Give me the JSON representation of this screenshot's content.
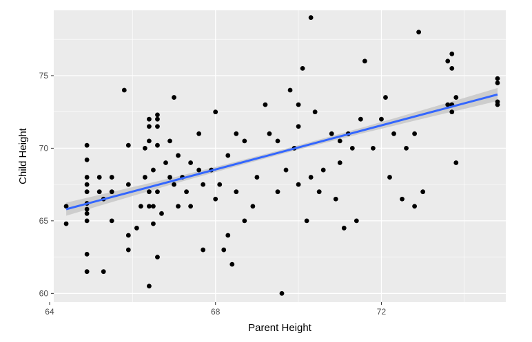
{
  "chart_data": {
    "type": "scatter",
    "xlabel": "Parent Height",
    "ylabel": "Child Height",
    "xlim": [
      64.1,
      75.0
    ],
    "ylim": [
      59.4,
      79.5
    ],
    "x_ticks": [
      64,
      68,
      72
    ],
    "x_tick_labels": [
      "64",
      "68",
      "72"
    ],
    "y_ticks": [
      60,
      65,
      70,
      75
    ],
    "y_tick_labels": [
      "60",
      "65",
      "70",
      "75"
    ],
    "grid": true,
    "colors": {
      "panel_background": "#ebebeb",
      "grid_line": "#ffffff",
      "point": "#000000",
      "trend_line": "#3366ff",
      "confidence_band": "#c8c8c8"
    },
    "trend_line": {
      "method": "linear regression",
      "x": [
        64.4,
        74.8
      ],
      "y": [
        65.8,
        73.7
      ],
      "ci_halfwidth_x": [
        64.4,
        65.5,
        67.0,
        68.5,
        70.0,
        71.5,
        73.0,
        74.0,
        74.8
      ],
      "ci_halfwidth": [
        0.45,
        0.35,
        0.22,
        0.16,
        0.15,
        0.2,
        0.3,
        0.38,
        0.45
      ]
    },
    "points": {
      "x": [
        64.4,
        64.4,
        64.9,
        64.9,
        64.9,
        64.9,
        64.9,
        64.9,
        64.9,
        64.9,
        64.9,
        64.9,
        64.9,
        65.2,
        65.2,
        65.3,
        65.3,
        65.5,
        65.5,
        65.5,
        65.8,
        65.9,
        65.9,
        65.9,
        65.9,
        66.1,
        66.2,
        66.3,
        66.3,
        66.4,
        66.4,
        66.4,
        66.4,
        66.4,
        66.4,
        66.5,
        66.5,
        66.5,
        66.6,
        66.6,
        66.6,
        66.6,
        66.6,
        66.6,
        66.7,
        66.8,
        66.9,
        66.9,
        67.0,
        67.0,
        67.1,
        67.1,
        67.2,
        67.3,
        67.4,
        67.4,
        67.6,
        67.6,
        67.7,
        67.7,
        67.9,
        68.0,
        68.0,
        68.1,
        68.2,
        68.3,
        68.3,
        68.4,
        68.5,
        68.5,
        68.7,
        68.7,
        68.9,
        69.0,
        69.2,
        69.3,
        69.5,
        69.5,
        69.6,
        69.7,
        69.8,
        69.9,
        70.0,
        70.0,
        70.0,
        70.1,
        70.2,
        70.3,
        70.3,
        70.4,
        70.5,
        70.6,
        70.8,
        70.9,
        71.0,
        71.0,
        71.1,
        71.2,
        71.3,
        71.4,
        71.5,
        71.6,
        71.8,
        72.0,
        72.1,
        72.2,
        72.3,
        72.5,
        72.6,
        72.8,
        72.8,
        72.9,
        73.0,
        73.6,
        73.6,
        73.7,
        73.7,
        73.7,
        73.7,
        73.8,
        73.8,
        74.8,
        74.8,
        74.8,
        74.8
      ],
      "y": [
        64.8,
        66.0,
        61.5,
        62.7,
        65.5,
        65.8,
        66.2,
        67.0,
        68.0,
        69.2,
        70.2,
        67.5,
        65.0,
        67.0,
        68.0,
        61.5,
        66.5,
        65.0,
        68.0,
        67.0,
        74.0,
        63.0,
        64.0,
        67.5,
        70.2,
        64.5,
        66.0,
        68.0,
        70.0,
        66.0,
        67.0,
        60.5,
        70.5,
        71.5,
        72.0,
        64.8,
        66.0,
        68.5,
        62.5,
        67.0,
        70.2,
        71.5,
        72.0,
        72.3,
        65.5,
        69.0,
        70.5,
        68.0,
        73.5,
        67.5,
        66.0,
        69.5,
        68.0,
        67.0,
        69.0,
        66.0,
        71.0,
        68.5,
        63.0,
        67.5,
        68.5,
        72.5,
        66.5,
        67.5,
        63.0,
        64.0,
        69.5,
        62.0,
        67.0,
        71.0,
        65.0,
        70.5,
        66.0,
        68.0,
        73.0,
        71.0,
        67.0,
        70.5,
        60.0,
        68.5,
        74.0,
        70.0,
        73.0,
        67.5,
        71.5,
        75.5,
        65.0,
        68.0,
        79.0,
        72.5,
        67.0,
        68.5,
        71.0,
        66.5,
        69.0,
        70.5,
        64.5,
        71.0,
        70.0,
        65.0,
        72.0,
        76.0,
        70.0,
        72.0,
        73.5,
        68.0,
        71.0,
        66.5,
        70.0,
        71.0,
        66.0,
        78.0,
        67.0,
        76.0,
        73.0,
        75.5,
        76.5,
        72.5,
        73.0,
        69.0,
        73.5,
        73.0,
        74.5,
        74.8,
        73.2
      ]
    }
  }
}
